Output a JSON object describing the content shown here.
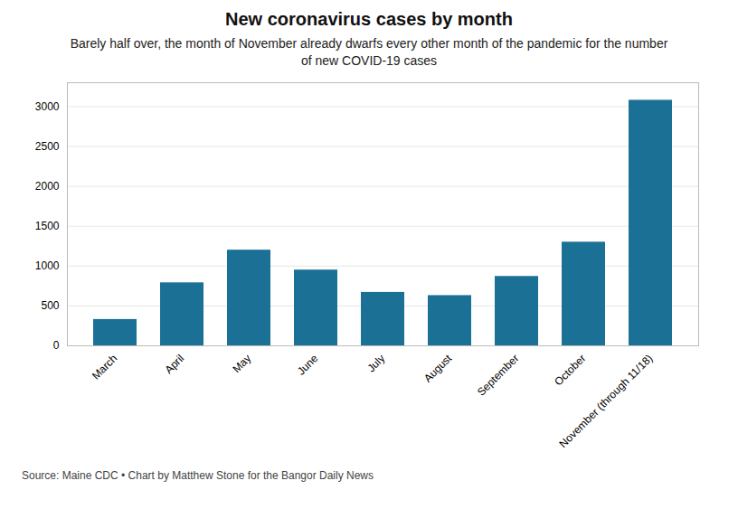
{
  "chart_data": {
    "type": "bar",
    "title": "New coronavirus cases by month",
    "subtitle": "Barely half over, the month of November already dwarfs every other month of the pandemic for the number\nof new COVID-19 cases",
    "source": "Source: Maine CDC • Chart by Matthew Stone for the Bangor Daily News",
    "categories": [
      "March",
      "April",
      "May",
      "June",
      "July",
      "August",
      "September",
      "October",
      "November (through 11/18)"
    ],
    "values": [
      330,
      790,
      1200,
      950,
      670,
      630,
      870,
      1300,
      3080
    ],
    "color": "#1b7096",
    "ylim": [
      0,
      3300
    ],
    "yticks": [
      0,
      500,
      1000,
      1500,
      2000,
      2500,
      3000
    ],
    "grid": true
  }
}
